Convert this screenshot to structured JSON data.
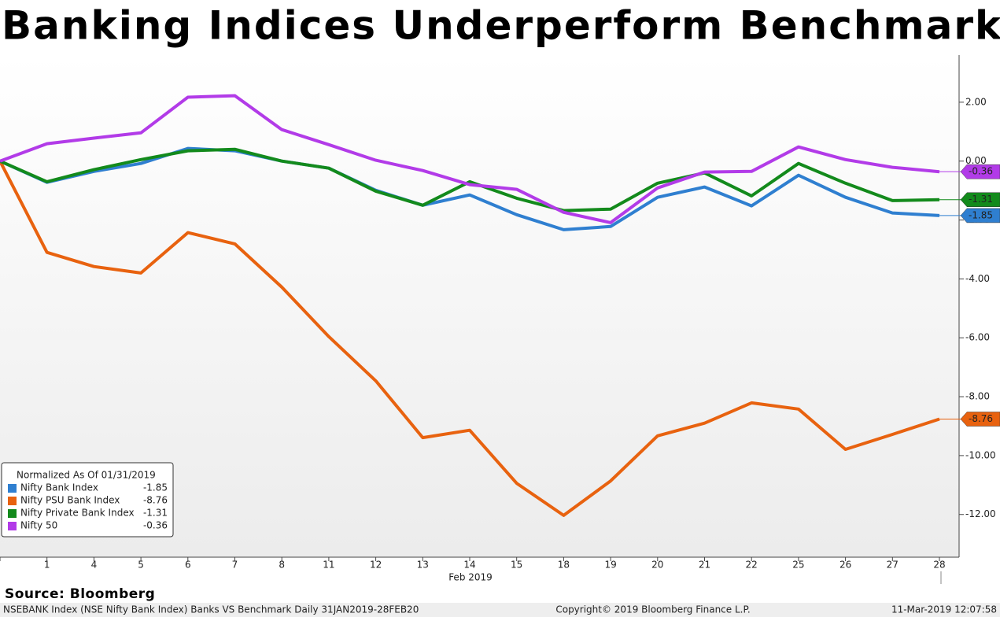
{
  "chart_data": {
    "type": "line",
    "title": "Banking Indices Underperform Benchmark",
    "x_sublabel": "Feb 2019",
    "categories": [
      null,
      "1",
      "4",
      "5",
      "6",
      "7",
      "8",
      "11",
      "12",
      "13",
      "14",
      "15",
      "18",
      "19",
      "20",
      "21",
      "22",
      "25",
      "26",
      "27",
      "28"
    ],
    "ylim": [
      -13.45,
      3.6
    ],
    "yticks": [
      {
        "value": 2,
        "label": "2.00"
      },
      {
        "value": 0,
        "label": "0.00"
      },
      {
        "value": -2,
        "label": "-2.00"
      },
      {
        "value": -4,
        "label": "-4.00"
      },
      {
        "value": -6,
        "label": "-6.00"
      },
      {
        "value": -8,
        "label": "-8.00"
      },
      {
        "value": -10,
        "label": "-10.00"
      },
      {
        "value": -12,
        "label": "-12.00"
      }
    ],
    "legend_title": "Normalized As Of 01/31/2019",
    "legend_position": "lower left",
    "series": [
      {
        "name": "Nifty Bank Index",
        "color": "#2f7fd0",
        "values": [
          0,
          -0.72,
          -0.35,
          -0.08,
          0.43,
          0.35,
          0,
          -0.24,
          -0.99,
          -1.5,
          -1.15,
          -1.82,
          -2.33,
          -2.22,
          -1.23,
          -0.88,
          -1.52,
          -0.48,
          -1.23,
          -1.76,
          -1.85
        ]
      },
      {
        "name": "Nifty PSU Bank Index",
        "color": "#e8620f",
        "values": [
          0,
          -3.1,
          -3.58,
          -3.8,
          -2.43,
          -2.81,
          -4.28,
          -5.96,
          -7.46,
          -9.39,
          -9.14,
          -10.94,
          -12.03,
          -10.86,
          -9.33,
          -8.9,
          -8.21,
          -8.42,
          -9.79,
          -9.28,
          -8.76
        ]
      },
      {
        "name": "Nifty Private Bank Index",
        "color": "#138a1c",
        "values": [
          0,
          -0.7,
          -0.29,
          0.05,
          0.35,
          0.4,
          0,
          -0.24,
          -1.02,
          -1.5,
          -0.7,
          -1.26,
          -1.68,
          -1.63,
          -0.75,
          -0.4,
          -1.18,
          -0.08,
          -0.75,
          -1.34,
          -1.31
        ]
      },
      {
        "name": "Nifty 50",
        "color": "#b23be8",
        "values": [
          0,
          0.59,
          0.78,
          0.96,
          2.17,
          2.22,
          1.07,
          0.56,
          0.03,
          -0.32,
          -0.8,
          -0.96,
          -1.74,
          -2.09,
          -0.91,
          -0.37,
          -0.35,
          0.48,
          0.05,
          -0.21,
          -0.36
        ]
      }
    ]
  },
  "source": "Source: Bloomberg",
  "footer": {
    "left": "NSEBANK Index (NSE Nifty Bank Index) Banks VS Benchmark  Daily 31JAN2019-28FEB20",
    "center": "Copyright© 2019 Bloomberg Finance L.P.",
    "right": "11-Mar-2019 12:07:58"
  }
}
